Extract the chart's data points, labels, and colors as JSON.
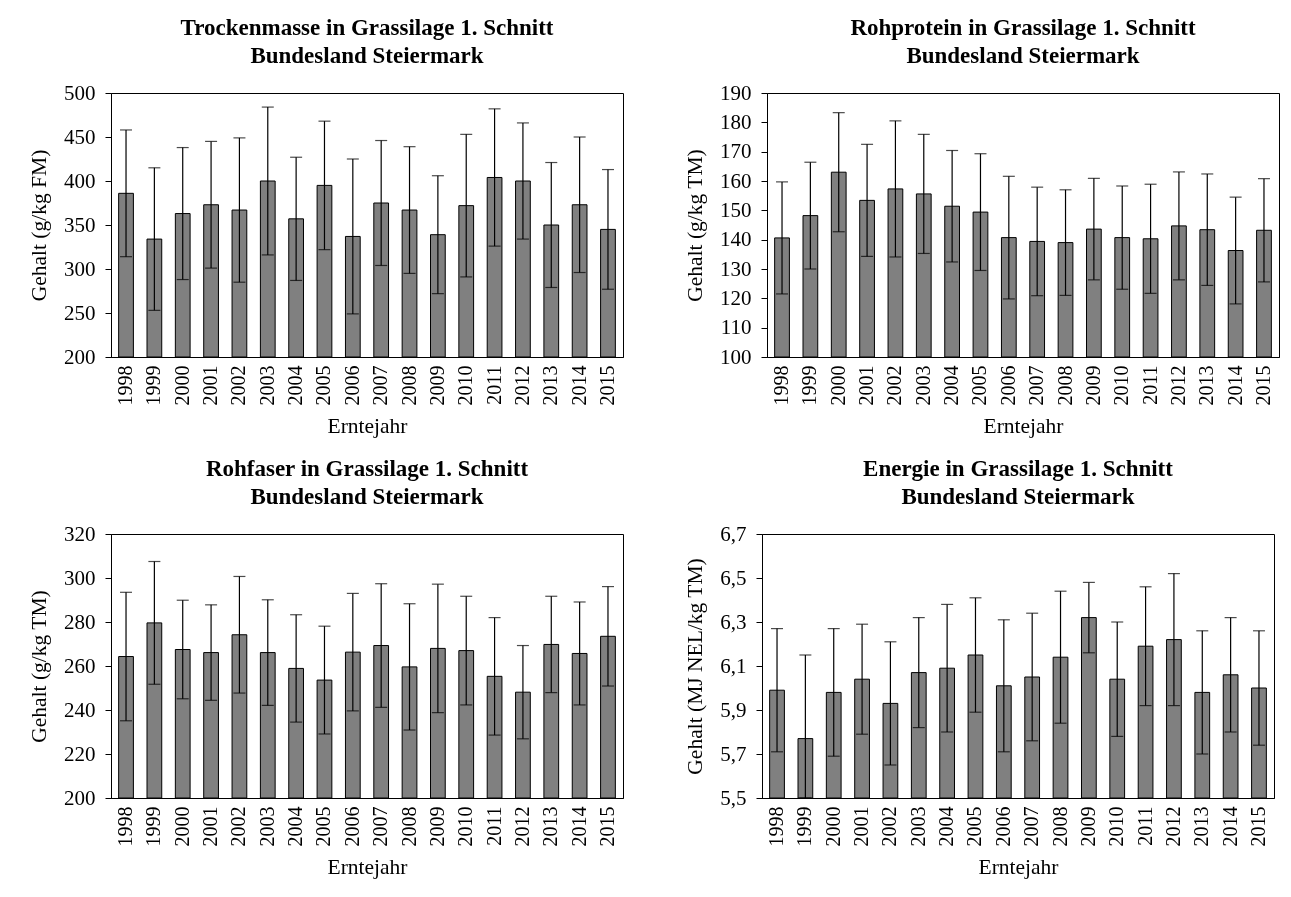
{
  "chart_data": [
    {
      "type": "bar",
      "title": "Trockenmasse in Grassilage 1. Schnitt",
      "subtitle": "Bundesland Steiermark",
      "xlabel": "Erntejahr",
      "ylabel": "Gehalt (g/kg FM)",
      "color": "#808080",
      "categories": [
        "1998",
        "1999",
        "2000",
        "2001",
        "2002",
        "2003",
        "2004",
        "2005",
        "2006",
        "2007",
        "2008",
        "2009",
        "2010",
        "2011",
        "2012",
        "2013",
        "2014",
        "2015"
      ],
      "values": [
        386,
        334,
        363,
        373,
        367,
        400,
        357,
        395,
        337,
        375,
        367,
        339,
        372,
        404,
        400,
        350,
        373,
        345
      ],
      "errors": [
        72,
        81,
        75,
        72,
        82,
        84,
        70,
        73,
        88,
        71,
        72,
        67,
        81,
        78,
        66,
        71,
        77,
        68
      ],
      "ylim": [
        200,
        500
      ],
      "yticks": [
        200,
        250,
        300,
        350,
        400,
        450,
        500
      ]
    },
    {
      "type": "bar",
      "title": "Rohprotein in Grassilage 1. Schnitt",
      "subtitle": "Bundesland Steiermark",
      "xlabel": "Erntejahr",
      "ylabel": "Gehalt (g/kg TM)",
      "color": "#808080",
      "categories": [
        "1998",
        "1999",
        "2000",
        "2001",
        "2002",
        "2003",
        "2004",
        "2005",
        "2006",
        "2007",
        "2008",
        "2009",
        "2010",
        "2011",
        "2012",
        "2013",
        "2014",
        "2015"
      ],
      "values": [
        140.6,
        148.2,
        163.0,
        153.4,
        157.3,
        155.6,
        151.4,
        149.4,
        140.7,
        139.4,
        139.0,
        143.6,
        140.7,
        140.3,
        144.7,
        143.4,
        136.3,
        143.2
      ],
      "errors": [
        19.1,
        18.2,
        20.3,
        19.1,
        23.2,
        20.3,
        19.0,
        19.9,
        20.9,
        18.5,
        18.0,
        17.3,
        17.6,
        18.6,
        18.4,
        19.0,
        18.2,
        17.6
      ],
      "ylim": [
        100,
        190
      ],
      "yticks": [
        100,
        110,
        120,
        130,
        140,
        150,
        160,
        170,
        180,
        190
      ]
    },
    {
      "type": "bar",
      "title": "Rohfaser in Grassilage 1. Schnitt",
      "subtitle": "Bundesland Steiermark",
      "xlabel": "Erntejahr",
      "ylabel": "Gehalt (g/kg TM)",
      "color": "#808080",
      "categories": [
        "1998",
        "1999",
        "2000",
        "2001",
        "2002",
        "2003",
        "2004",
        "2005",
        "2006",
        "2007",
        "2008",
        "2009",
        "2010",
        "2011",
        "2012",
        "2013",
        "2014",
        "2015"
      ],
      "values": [
        264.3,
        279.6,
        267.5,
        266.1,
        274.2,
        266.1,
        258.9,
        253.6,
        266.3,
        269.3,
        259.6,
        268.0,
        267.0,
        255.3,
        248.1,
        269.8,
        265.7,
        273.5
      ],
      "errors": [
        29.2,
        27.9,
        22.4,
        21.7,
        26.5,
        24.0,
        24.4,
        24.5,
        26.7,
        28.1,
        28.7,
        29.2,
        24.7,
        26.7,
        21.2,
        21.9,
        23.4,
        22.6
      ],
      "ylim": [
        200,
        320
      ],
      "yticks": [
        200,
        220,
        240,
        260,
        280,
        300,
        320
      ]
    },
    {
      "type": "bar",
      "title": "Energie in Grassilage 1. Schnitt",
      "subtitle": "Bundesland Steiermark",
      "xlabel": "Erntejahr",
      "ylabel": "Gehalt (MJ NEL/kg TM)",
      "color": "#808080",
      "categories": [
        "1998",
        "1999",
        "2000",
        "2001",
        "2002",
        "2003",
        "2004",
        "2005",
        "2006",
        "2007",
        "2008",
        "2009",
        "2010",
        "2011",
        "2012",
        "2013",
        "2014",
        "2015"
      ],
      "values": [
        5.99,
        5.77,
        5.98,
        6.04,
        5.93,
        6.07,
        6.09,
        6.15,
        6.01,
        6.05,
        6.14,
        6.32,
        6.04,
        6.19,
        6.22,
        5.98,
        6.06,
        6.0
      ],
      "errors": [
        0.28,
        [
          5.5,
          6.15
        ],
        0.29,
        0.25,
        0.28,
        0.25,
        0.29,
        0.26,
        0.3,
        0.29,
        0.3,
        0.16,
        0.26,
        0.27,
        0.3,
        0.28,
        0.26,
        0.26
      ],
      "ylim": [
        5.5,
        6.7
      ],
      "yticks": [
        {
          "value": 5.5,
          "label": "5,5"
        },
        {
          "value": 5.7,
          "label": "5,7"
        },
        {
          "value": 5.9,
          "label": "5,9"
        },
        {
          "value": 6.1,
          "label": "6,1"
        },
        {
          "value": 6.3,
          "label": "6,3"
        },
        {
          "value": 6.5,
          "label": "6,5"
        },
        {
          "value": 6.7,
          "label": "6,7"
        }
      ]
    }
  ]
}
